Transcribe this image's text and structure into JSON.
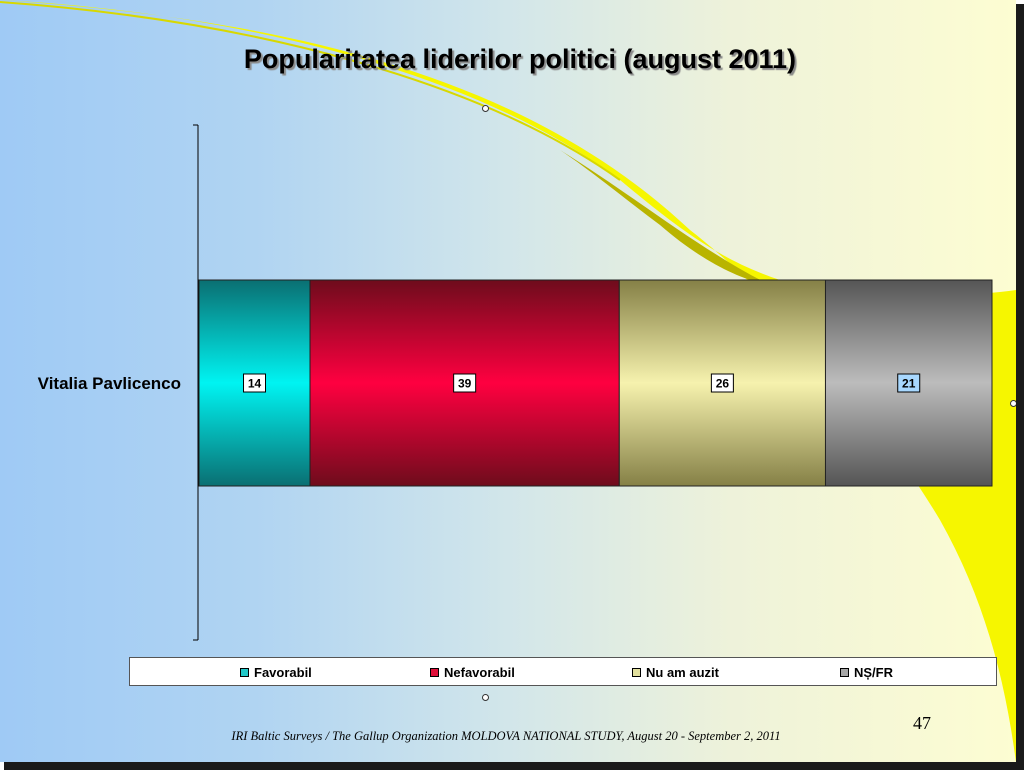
{
  "title": "Popularitatea liderilor politici  (august 2011)",
  "footer": "IRI  Baltic Surveys / The Gallup Organization   MOLDOVA NATIONAL STUDY, August 20 - September 2, 2011",
  "page_number": "47",
  "colors": {
    "favorabil": "#20c8c8",
    "nefavorabil": "#e0103a",
    "nu_am_auzit": "#e2e09e",
    "ns_fr": "#a6a6a6",
    "background_left": "#9fcaf5",
    "background_right": "#fdfdd2",
    "accent_yellow": "#f8f800"
  },
  "legend": [
    {
      "label": "Favorabil",
      "color": "#20c8c8"
    },
    {
      "label": "Nefavorabil",
      "color": "#e0103a"
    },
    {
      "label": "Nu am auzit",
      "color": "#e2e09e"
    },
    {
      "label": "NȘ/FR",
      "color": "#a6a6a6"
    }
  ],
  "chart_data": {
    "type": "bar",
    "orientation": "horizontal",
    "stacked": true,
    "stacking": "percent",
    "categories": [
      "Vitalia Pavlicenco"
    ],
    "series": [
      {
        "name": "Favorabil",
        "values": [
          14
        ],
        "color": "#20c8c8"
      },
      {
        "name": "Nefavorabil",
        "values": [
          39
        ],
        "color": "#e0103a"
      },
      {
        "name": "Nu am auzit",
        "values": [
          26
        ],
        "color": "#e2e09e"
      },
      {
        "name": "NȘ/FR",
        "values": [
          21
        ],
        "color": "#a6a6a6"
      }
    ],
    "xlim": [
      0,
      100
    ],
    "grid": false,
    "data_labels": true,
    "legend_position": "bottom"
  }
}
